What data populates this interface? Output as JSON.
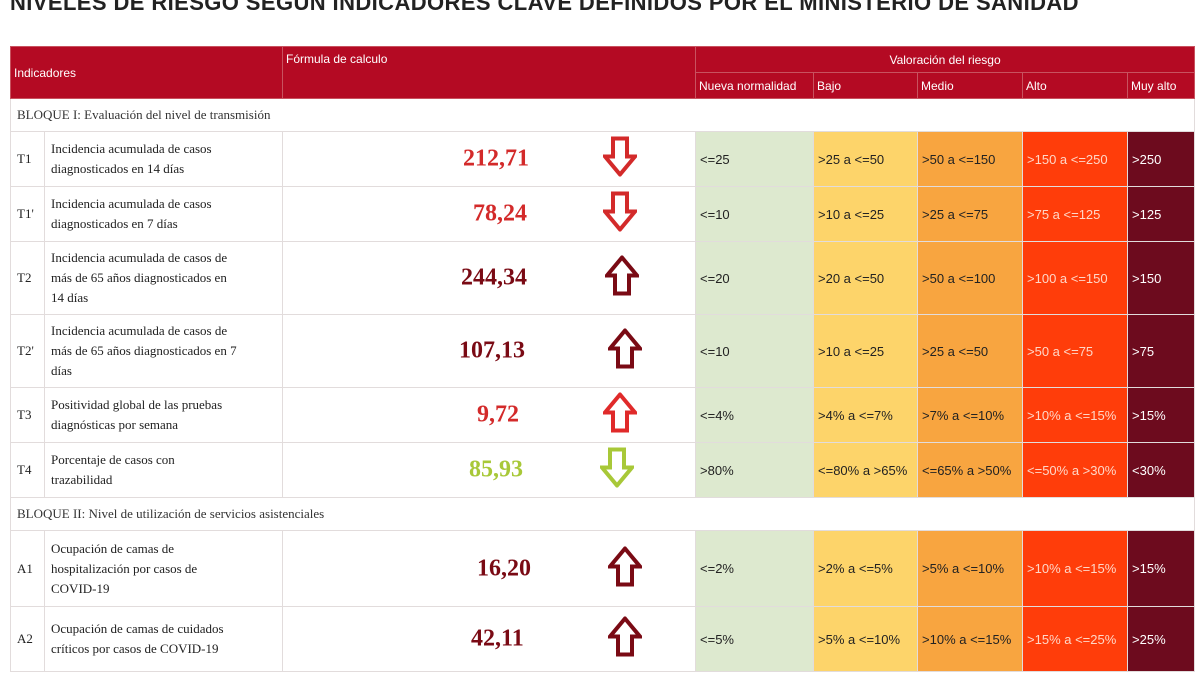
{
  "title": "NIVELES DE RIESGO SEGÚN INDICADORES CLAVE DEFINIDOS POR EL MINISTERIO DE SANIDAD",
  "header": {
    "indicadores": "Indicadores",
    "formula": "Fórmula de calculo",
    "valoracion": "Valoración del riesgo",
    "levels": [
      "Nueva normalidad",
      "Bajo",
      "Medio",
      "Alto",
      "Muy alto"
    ]
  },
  "colors": {
    "header_red": "#b40a23",
    "nueva_normalidad": "#dde9cf",
    "bajo": "#fdd46a",
    "medio": "#f8a540",
    "alto": "#ff3d0a",
    "muy_alto": "#6d0b1e",
    "value_red": "#d32a2a",
    "value_darkred": "#7a0a14",
    "value_green": "#a8c838"
  },
  "blocks": [
    {
      "title": "BLOQUE I: Evaluación del nivel de transmisión",
      "rows": [
        {
          "code": "T1",
          "label_lines": [
            "Incidencia acumulada de casos",
            "diagnosticados en 14 días"
          ],
          "value": "212,71",
          "value_color": "#d32a2a",
          "trend": "down",
          "arrow_color": "#d32a2a",
          "ranges": [
            "<=25",
            ">25 a <=50",
            ">50 a <=150",
            ">150 a <=250",
            ">250"
          ]
        },
        {
          "code": "T1'",
          "label_lines": [
            "Incidencia acumulada de casos",
            "diagnosticados en 7 días"
          ],
          "value": "78,24",
          "value_color": "#d32a2a",
          "trend": "down",
          "arrow_color": "#d32a2a",
          "ranges": [
            "<=10",
            ">10 a <=25",
            ">25 a <=75",
            ">75 a <=125",
            ">125"
          ]
        },
        {
          "code": "T2",
          "label_lines": [
            "Incidencia acumulada de casos de",
            "más de 65 años diagnosticados en",
            "14 días"
          ],
          "value": "244,34",
          "value_color": "#7a0a14",
          "trend": "up",
          "arrow_color": "#7a0a14",
          "ranges": [
            "<=20",
            ">20 a <=50",
            ">50 a <=100",
            ">100 a <=150",
            ">150"
          ]
        },
        {
          "code": "T2'",
          "label_lines": [
            "Incidencia acumulada de casos de",
            "más de 65 años diagnosticados en 7",
            "días"
          ],
          "value": "107,13",
          "value_color": "#7a0a14",
          "trend": "up",
          "arrow_color": "#7a0a14",
          "ranges": [
            "<=10",
            ">10 a <=25",
            ">25 a <=50",
            ">50 a <=75",
            ">75"
          ]
        },
        {
          "code": "T3",
          "label_lines": [
            "Positividad global de las pruebas",
            "diagnósticas por semana"
          ],
          "value": "9,72",
          "value_color": "#d32a2a",
          "trend": "up",
          "arrow_color": "#e02a2a",
          "ranges": [
            "<=4%",
            ">4% a <=7%",
            ">7% a <=10%",
            ">10% a <=15%",
            ">15%"
          ]
        },
        {
          "code": "T4",
          "label_lines": [
            "Porcentaje de casos con",
            "trazabilidad"
          ],
          "value": "85,93",
          "value_color": "#a8c838",
          "trend": "down",
          "arrow_color": "#a8c838",
          "ranges": [
            ">80%",
            "<=80% a >65%",
            "<=65% a >50%",
            "<=50% a >30%",
            "<30%"
          ]
        }
      ]
    },
    {
      "title": "BLOQUE II: Nivel de utilización de servicios asistenciales",
      "rows": [
        {
          "code": "A1",
          "label_lines": [
            "Ocupación de camas de",
            "hospitalización por casos de",
            "COVID-19"
          ],
          "value": "16,20",
          "value_color": "#7a0a14",
          "trend": "up",
          "arrow_color": "#7a0a14",
          "ranges": [
            "<=2%",
            ">2% a <=5%",
            ">5% a <=10%",
            ">10% a <=15%",
            ">15%"
          ]
        },
        {
          "code": "A2",
          "label_lines": [
            "Ocupación de camas de cuidados",
            "críticos por casos de COVID-19"
          ],
          "value": "42,11",
          "value_color": "#7a0a14",
          "trend": "up",
          "arrow_color": "#7a0a14",
          "ranges": [
            "<=5%",
            ">5% a <=10%",
            ">10% a <=15%",
            ">15% a <=25%",
            ">25%"
          ]
        }
      ]
    }
  ]
}
